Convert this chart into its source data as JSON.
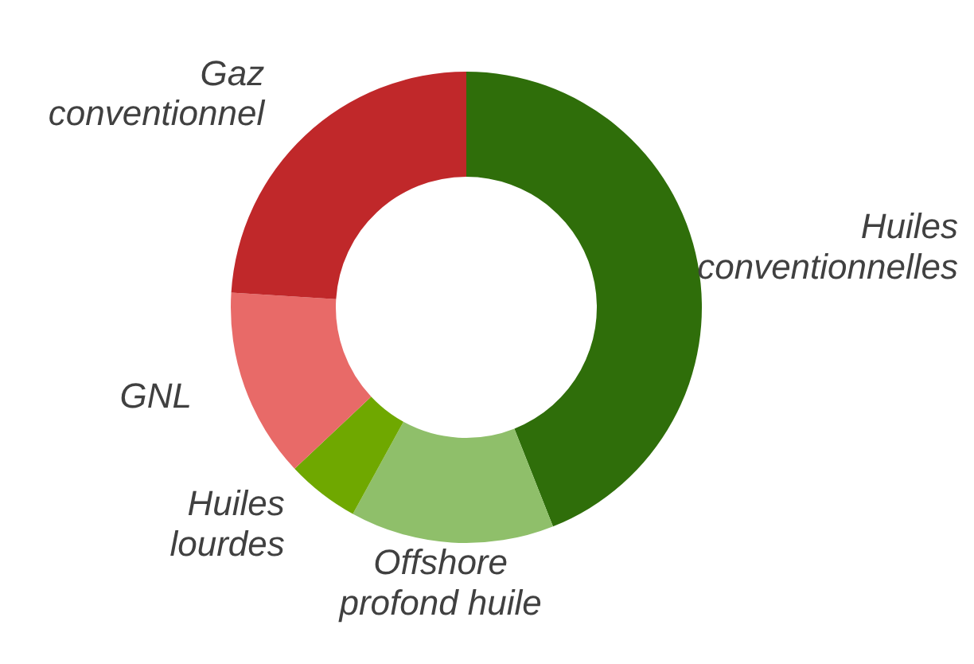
{
  "chart_data": {
    "type": "donut",
    "categories": [
      "Huiles conventionnelles",
      "Offshore profond huile",
      "Huiles lourdes",
      "GNL",
      "Gaz conventionnel"
    ],
    "values": [
      44,
      14,
      5,
      13,
      24
    ],
    "colors": [
      "#2f6e0a",
      "#8fbf6a",
      "#6fa800",
      "#e86a68",
      "#c0282a"
    ],
    "legend": false
  }
}
